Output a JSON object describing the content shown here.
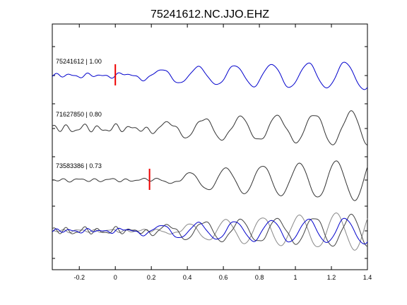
{
  "chart_data": {
    "type": "line",
    "title": "75241612.NC.JJO.EHZ",
    "xlabel": "",
    "ylabel": "",
    "xlim": [
      -0.35,
      1.4
    ],
    "xticks": [
      -0.2,
      0,
      0.2,
      0.4,
      0.6,
      0.8,
      1,
      1.2,
      1.4
    ],
    "xtick_labels": [
      "-0.2",
      "0",
      "0.2",
      "0.4",
      "0.6",
      "0.8",
      "1",
      "1.2",
      "1.4"
    ],
    "grid": false,
    "legend": "none",
    "traces": [
      {
        "label": "75241612 | 1.00",
        "color": "#0000cc",
        "pick_time": 0.0,
        "freq": 4.9,
        "phase": 0.0,
        "noise_amp": 0.22,
        "signal_amp": 1.0,
        "growth": 0.9
      },
      {
        "label": "71627850 | 0.80",
        "color": "#333333",
        "pick_time": null,
        "freq": 4.9,
        "phase": 0.55,
        "noise_amp": 0.42,
        "signal_amp": 1.0,
        "growth": 1.3
      },
      {
        "label": "73583386 | 0.73",
        "color": "#333333",
        "pick_time": 0.19,
        "freq": 4.9,
        "phase": 1.1,
        "noise_amp": 0.18,
        "signal_amp": 1.15,
        "growth": 1.6
      }
    ],
    "stack": {
      "members": [
        "75241612",
        "71627850",
        "73583386"
      ],
      "colors": [
        "#0000cc",
        "#444444",
        "#888888"
      ]
    },
    "pick_color": "#ee0000"
  }
}
